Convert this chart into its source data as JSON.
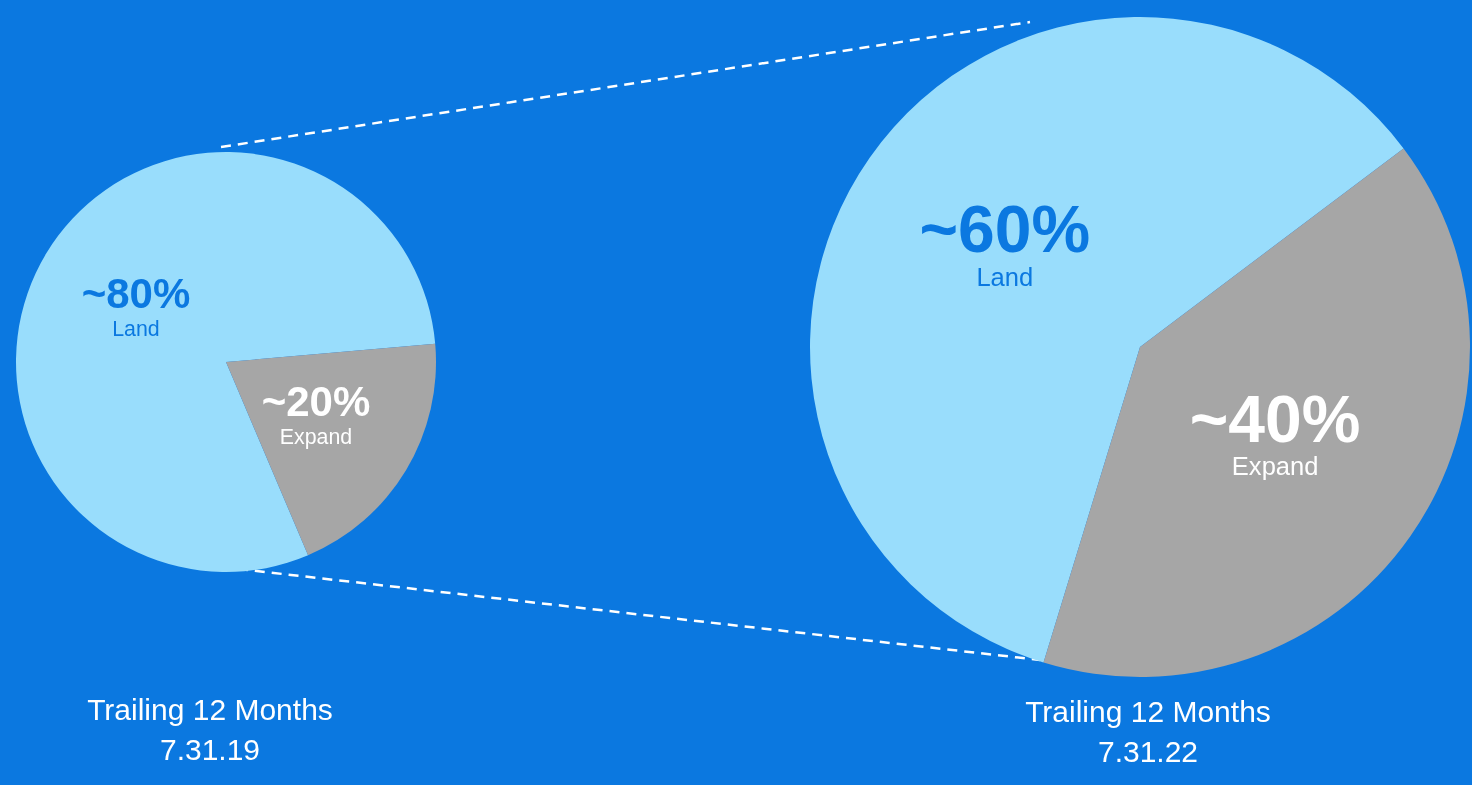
{
  "chart_data": [
    {
      "type": "pie",
      "title": "Trailing 12 Months",
      "subtitle": "7.31.19",
      "categories": [
        "Land",
        "Expand"
      ],
      "values": [
        80,
        20
      ],
      "colors": [
        "#99ddfc",
        "#a6a6a6"
      ],
      "value_labels": [
        "~80%",
        "~20%"
      ]
    },
    {
      "type": "pie",
      "title": "Trailing 12 Months",
      "subtitle": "7.31.22",
      "categories": [
        "Land",
        "Expand"
      ],
      "values": [
        60,
        40
      ],
      "colors": [
        "#99ddfc",
        "#a6a6a6"
      ],
      "value_labels": [
        "~60%",
        "~40%"
      ]
    }
  ]
}
